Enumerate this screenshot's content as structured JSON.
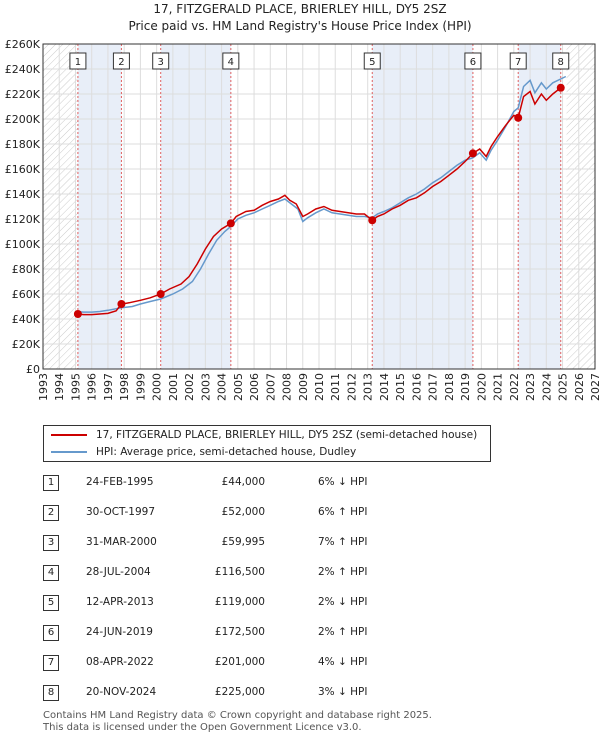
{
  "title": {
    "line1": "17, FITZGERALD PLACE, BRIERLEY HILL, DY5 2SZ",
    "line2": "Price paid vs. HM Land Registry's House Price Index (HPI)"
  },
  "chart_data": {
    "type": "line",
    "y_ticks": [
      "£0",
      "£20K",
      "£40K",
      "£60K",
      "£80K",
      "£100K",
      "£120K",
      "£140K",
      "£160K",
      "£180K",
      "£200K",
      "£220K",
      "£240K",
      "£260K"
    ],
    "ylim": [
      0,
      260000
    ],
    "x_ticks": [
      "1993",
      "1994",
      "1995",
      "1996",
      "1997",
      "1998",
      "1999",
      "2000",
      "2001",
      "2002",
      "2003",
      "2004",
      "2005",
      "2006",
      "2007",
      "2008",
      "2009",
      "2010",
      "2011",
      "2012",
      "2013",
      "2014",
      "2015",
      "2016",
      "2017",
      "2018",
      "2019",
      "2020",
      "2021",
      "2022",
      "2023",
      "2024",
      "2025",
      "2026",
      "2027"
    ],
    "xlim": [
      1993,
      2027
    ],
    "colors": {
      "property": "#cc0000",
      "hpi": "#6699cc",
      "shade": "#e8eef8",
      "grid": "#dddddd",
      "vline": "#e06060"
    },
    "series": [
      {
        "name": "17, FITZGERALD PLACE, BRIERLEY HILL, DY5 2SZ (semi-detached house)",
        "color": "#cc0000",
        "points": [
          [
            1995.15,
            44000
          ],
          [
            1995.5,
            43500
          ],
          [
            1996.0,
            43500
          ],
          [
            1996.5,
            44000
          ],
          [
            1997.0,
            44500
          ],
          [
            1997.5,
            46500
          ],
          [
            1997.83,
            52000
          ],
          [
            1998.3,
            53000
          ],
          [
            1999.0,
            55000
          ],
          [
            1999.6,
            57000
          ],
          [
            2000.25,
            59995
          ],
          [
            2000.8,
            64000
          ],
          [
            2001.5,
            68000
          ],
          [
            2002.0,
            74000
          ],
          [
            2002.5,
            84000
          ],
          [
            2003.0,
            96000
          ],
          [
            2003.5,
            106000
          ],
          [
            2004.0,
            112000
          ],
          [
            2004.57,
            116500
          ],
          [
            2004.9,
            122000
          ],
          [
            2005.5,
            126000
          ],
          [
            2006.0,
            127000
          ],
          [
            2006.5,
            131000
          ],
          [
            2007.0,
            134000
          ],
          [
            2007.5,
            136000
          ],
          [
            2007.9,
            139000
          ],
          [
            2008.2,
            135000
          ],
          [
            2008.6,
            132000
          ],
          [
            2009.0,
            122000
          ],
          [
            2009.3,
            124000
          ],
          [
            2009.8,
            128000
          ],
          [
            2010.3,
            130000
          ],
          [
            2010.8,
            127000
          ],
          [
            2011.3,
            126000
          ],
          [
            2011.8,
            125000
          ],
          [
            2012.3,
            124000
          ],
          [
            2012.8,
            124000
          ],
          [
            2013.28,
            119000
          ],
          [
            2013.6,
            122000
          ],
          [
            2014.0,
            124000
          ],
          [
            2014.5,
            128000
          ],
          [
            2015.0,
            131000
          ],
          [
            2015.5,
            135000
          ],
          [
            2016.0,
            137000
          ],
          [
            2016.5,
            141000
          ],
          [
            2017.0,
            146000
          ],
          [
            2017.5,
            150000
          ],
          [
            2018.0,
            155000
          ],
          [
            2018.5,
            160000
          ],
          [
            2019.0,
            166000
          ],
          [
            2019.48,
            172500
          ],
          [
            2019.9,
            176000
          ],
          [
            2020.3,
            170000
          ],
          [
            2020.6,
            178000
          ],
          [
            2021.0,
            186000
          ],
          [
            2021.5,
            195000
          ],
          [
            2022.0,
            203000
          ],
          [
            2022.27,
            201000
          ],
          [
            2022.6,
            218000
          ],
          [
            2023.0,
            222000
          ],
          [
            2023.3,
            212000
          ],
          [
            2023.7,
            220000
          ],
          [
            2024.0,
            215000
          ],
          [
            2024.4,
            220000
          ],
          [
            2024.89,
            225000
          ]
        ]
      },
      {
        "name": "HPI: Average price, semi-detached house, Dudley",
        "color": "#6699cc",
        "points": [
          [
            1995.0,
            46000
          ],
          [
            1995.5,
            45500
          ],
          [
            1996.0,
            45500
          ],
          [
            1996.5,
            46000
          ],
          [
            1997.0,
            47000
          ],
          [
            1997.83,
            49000
          ],
          [
            1998.5,
            50000
          ],
          [
            1999.0,
            52000
          ],
          [
            1999.6,
            54000
          ],
          [
            2000.25,
            56000
          ],
          [
            2001.0,
            60000
          ],
          [
            2001.6,
            64000
          ],
          [
            2002.2,
            70000
          ],
          [
            2002.7,
            80000
          ],
          [
            2003.2,
            92000
          ],
          [
            2003.7,
            103000
          ],
          [
            2004.2,
            110000
          ],
          [
            2004.57,
            114000
          ],
          [
            2005.0,
            120000
          ],
          [
            2005.5,
            123000
          ],
          [
            2006.0,
            125000
          ],
          [
            2006.5,
            128000
          ],
          [
            2007.0,
            131000
          ],
          [
            2007.5,
            134000
          ],
          [
            2007.9,
            136000
          ],
          [
            2008.3,
            132000
          ],
          [
            2008.7,
            128000
          ],
          [
            2009.0,
            118000
          ],
          [
            2009.3,
            121000
          ],
          [
            2009.8,
            125000
          ],
          [
            2010.3,
            128000
          ],
          [
            2010.8,
            125000
          ],
          [
            2011.3,
            124000
          ],
          [
            2011.8,
            123000
          ],
          [
            2012.3,
            122000
          ],
          [
            2012.8,
            122000
          ],
          [
            2013.28,
            121000
          ],
          [
            2013.6,
            124000
          ],
          [
            2014.0,
            126000
          ],
          [
            2014.5,
            129000
          ],
          [
            2015.0,
            133000
          ],
          [
            2015.5,
            137000
          ],
          [
            2016.0,
            140000
          ],
          [
            2016.5,
            144000
          ],
          [
            2017.0,
            149000
          ],
          [
            2017.5,
            153000
          ],
          [
            2018.0,
            158000
          ],
          [
            2018.5,
            163000
          ],
          [
            2019.0,
            167000
          ],
          [
            2019.48,
            169000
          ],
          [
            2019.9,
            173000
          ],
          [
            2020.3,
            167000
          ],
          [
            2020.6,
            175000
          ],
          [
            2021.0,
            183000
          ],
          [
            2021.5,
            194000
          ],
          [
            2022.0,
            206000
          ],
          [
            2022.27,
            209000
          ],
          [
            2022.6,
            226000
          ],
          [
            2023.0,
            231000
          ],
          [
            2023.3,
            221000
          ],
          [
            2023.7,
            229000
          ],
          [
            2024.0,
            224000
          ],
          [
            2024.4,
            229000
          ],
          [
            2024.89,
            232000
          ],
          [
            2025.2,
            234000
          ]
        ]
      }
    ],
    "sales": [
      {
        "label": "1",
        "x": 1995.15,
        "price": 44000
      },
      {
        "label": "2",
        "x": 1997.83,
        "price": 52000
      },
      {
        "label": "3",
        "x": 2000.25,
        "price": 59995
      },
      {
        "label": "4",
        "x": 2004.57,
        "price": 116500
      },
      {
        "label": "5",
        "x": 2013.28,
        "price": 119000
      },
      {
        "label": "6",
        "x": 2019.48,
        "price": 172500
      },
      {
        "label": "7",
        "x": 2022.27,
        "price": 201000
      },
      {
        "label": "8",
        "x": 2024.89,
        "price": 225000
      }
    ],
    "shaded_ranges": [
      [
        1995.15,
        1997.83
      ],
      [
        2000.25,
        2004.57
      ],
      [
        2013.28,
        2019.48
      ],
      [
        2022.27,
        2024.89
      ]
    ],
    "hatch_ranges": [
      [
        1993,
        1995.15
      ],
      [
        2025.25,
        2027
      ]
    ]
  },
  "legend": {
    "property_label": "17, FITZGERALD PLACE, BRIERLEY HILL, DY5 2SZ (semi-detached house)",
    "hpi_label": "HPI: Average price, semi-detached house, Dudley"
  },
  "transactions": [
    {
      "num": "1",
      "date": "24-FEB-1995",
      "price": "£44,000",
      "hpi": "6% ↓ HPI"
    },
    {
      "num": "2",
      "date": "30-OCT-1997",
      "price": "£52,000",
      "hpi": "6% ↑ HPI"
    },
    {
      "num": "3",
      "date": "31-MAR-2000",
      "price": "£59,995",
      "hpi": "7% ↑ HPI"
    },
    {
      "num": "4",
      "date": "28-JUL-2004",
      "price": "£116,500",
      "hpi": "2% ↑ HPI"
    },
    {
      "num": "5",
      "date": "12-APR-2013",
      "price": "£119,000",
      "hpi": "2% ↓ HPI"
    },
    {
      "num": "6",
      "date": "24-JUN-2019",
      "price": "£172,500",
      "hpi": "2% ↑ HPI"
    },
    {
      "num": "7",
      "date": "08-APR-2022",
      "price": "£201,000",
      "hpi": "4% ↓ HPI"
    },
    {
      "num": "8",
      "date": "20-NOV-2024",
      "price": "£225,000",
      "hpi": "3% ↓ HPI"
    }
  ],
  "footer": {
    "line1": "Contains HM Land Registry data © Crown copyright and database right 2025.",
    "line2": "This data is licensed under the Open Government Licence v3.0."
  }
}
